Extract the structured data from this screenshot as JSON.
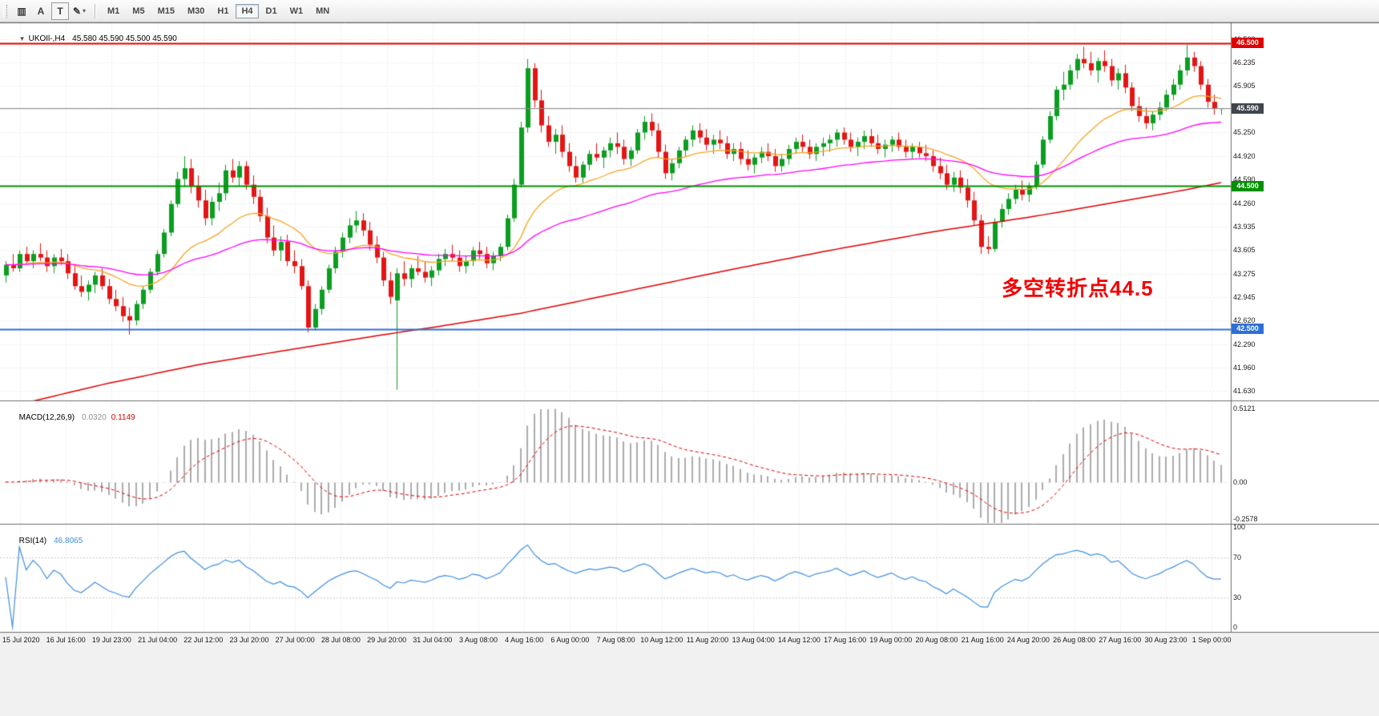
{
  "toolbar": {
    "icon_buttons": [
      {
        "name": "chart-window-button",
        "icon_name": "bars-icon",
        "glyph": "▥",
        "boxed": false,
        "dropdown": false
      },
      {
        "name": "text-label-button",
        "icon_name": "letter-a-icon",
        "glyph": "A",
        "boxed": false,
        "dropdown": false
      },
      {
        "name": "text-frame-button",
        "icon_name": "letter-t-icon",
        "glyph": "T",
        "boxed": true,
        "dropdown": false
      },
      {
        "name": "draw-tools-button",
        "icon_name": "pencil-icon",
        "glyph": "✎",
        "boxed": false,
        "dropdown": true
      }
    ],
    "timeframes": [
      "M1",
      "M5",
      "M15",
      "M30",
      "H1",
      "H4",
      "D1",
      "W1",
      "MN"
    ],
    "active_timeframe": "H4"
  },
  "price_panel": {
    "header": {
      "collapse_glyph": "▼",
      "title": "UKOIl-,H4",
      "ohlc": "45.580 45.590 45.500 45.590"
    },
    "scale_labels": [
      "46.560",
      "46.235",
      "45.905",
      "45.575",
      "45.250",
      "44.920",
      "44.590",
      "44.260",
      "43.935",
      "43.605",
      "43.275",
      "42.945",
      "42.620",
      "42.290",
      "41.960",
      "41.630"
    ],
    "hlines": [
      {
        "name": "resistance-line",
        "price": 46.5,
        "color": "#e00000",
        "width": 2,
        "label": "46.500",
        "label_bg": "#e00000"
      },
      {
        "name": "current-price-line",
        "price": 45.59,
        "color": "#8a8a8a",
        "width": 1,
        "label": "45.590",
        "label_bg": "#40464c"
      },
      {
        "name": "pivot-line",
        "price": 44.5,
        "color": "#009000",
        "width": 2,
        "label": "44.500",
        "label_bg": "#009000"
      },
      {
        "name": "support-line",
        "price": 42.5,
        "color": "#2e6fd6",
        "width": 2,
        "label": "42.500",
        "label_bg": "#2e6fd6"
      }
    ],
    "annotation": {
      "text": "多空转折点44.5",
      "color": "#f20000"
    }
  },
  "macd_panel": {
    "label": "MACD(12,26,9)",
    "main_value": "0.0320",
    "signal_value": "0.1149",
    "scale_labels": [
      "0.5121",
      "0.00",
      "-0.2578"
    ]
  },
  "rsi_panel": {
    "label": "RSI(14)",
    "value": "46.8065",
    "scale_labels": [
      "100",
      "70",
      "30",
      "0"
    ],
    "levels": [
      70,
      30
    ]
  },
  "time_axis": {
    "labels": [
      "15 Jul 2020",
      "16 Jul 16:00",
      "19 Jul 23:00",
      "21 Jul 04:00",
      "22 Jul 12:00",
      "23 Jul 20:00",
      "27 Jul 00:00",
      "28 Jul 08:00",
      "29 Jul 20:00",
      "31 Jul 04:00",
      "3 Aug 08:00",
      "4 Aug 16:00",
      "6 Aug 00:00",
      "7 Aug 08:00",
      "10 Aug 12:00",
      "11 Aug 20:00",
      "13 Aug 04:00",
      "14 Aug 12:00",
      "17 Aug 16:00",
      "19 Aug 00:00",
      "20 Aug 08:00",
      "21 Aug 16:00",
      "24 Aug 20:00",
      "26 Aug 08:00",
      "27 Aug 16:00",
      "30 Aug 23:00",
      "1 Sep 00:00"
    ]
  },
  "colors": {
    "bull": "#0b9e21",
    "bear": "#e41515",
    "histogram": "#ababab",
    "rsi_line": "#3f8fdf",
    "grid": "#e2e2e2"
  },
  "chart_data": {
    "type": "candlestick",
    "symbol": "UKOIl-",
    "timeframe": "H4",
    "last_ohlc": {
      "open": "45.580",
      "high": "45.590",
      "low": "45.500",
      "close": "45.590"
    },
    "price_axis": {
      "min": 41.63,
      "max": 46.56,
      "tick_step": 0.33
    },
    "hlines": [
      46.5,
      45.59,
      44.5,
      42.5
    ],
    "annotation": "多空转折点44.5",
    "indicators": [
      {
        "name": "MACD",
        "params": [
          12,
          26,
          9
        ],
        "current_main": 0.032,
        "current_signal": 0.1149,
        "scale": [
          0.5121,
          0.0,
          -0.2578
        ]
      },
      {
        "name": "RSI",
        "params": [
          14
        ],
        "current": 46.8065,
        "levels": [
          70,
          30
        ],
        "scale": [
          100,
          70,
          30,
          0
        ]
      }
    ],
    "overlays": [
      {
        "name": "ma-fast",
        "type": "ema",
        "period": 21,
        "color": "#f5a623"
      },
      {
        "name": "ma-mid",
        "type": "ema",
        "period": 55,
        "color": "#ff00ff"
      },
      {
        "name": "ma-slow",
        "type": "waypoints",
        "color": "#e00000",
        "points": [
          [
            0,
            41.4
          ],
          [
            14,
            41.72
          ],
          [
            28,
            42.0
          ],
          [
            42,
            42.22
          ],
          [
            55,
            42.42
          ],
          [
            62,
            42.52
          ],
          [
            75,
            42.72
          ],
          [
            90,
            43.02
          ],
          [
            105,
            43.32
          ],
          [
            120,
            43.6
          ],
          [
            135,
            43.86
          ],
          [
            150,
            44.08
          ],
          [
            162,
            44.28
          ],
          [
            172,
            44.45
          ],
          [
            177,
            44.55
          ]
        ]
      }
    ],
    "candles": [
      [
        43.25,
        43.45,
        43.15,
        43.4
      ],
      [
        43.4,
        43.55,
        43.3,
        43.35
      ],
      [
        43.35,
        43.6,
        43.3,
        43.55
      ],
      [
        43.55,
        43.65,
        43.4,
        43.45
      ],
      [
        43.45,
        43.6,
        43.35,
        43.55
      ],
      [
        43.55,
        43.7,
        43.45,
        43.5
      ],
      [
        43.5,
        43.6,
        43.3,
        43.38
      ],
      [
        43.38,
        43.55,
        43.28,
        43.5
      ],
      [
        43.5,
        43.62,
        43.4,
        43.45
      ],
      [
        43.45,
        43.55,
        43.2,
        43.28
      ],
      [
        43.28,
        43.4,
        43.05,
        43.1
      ],
      [
        43.1,
        43.25,
        42.95,
        43.02
      ],
      [
        43.02,
        43.18,
        42.9,
        43.12
      ],
      [
        43.12,
        43.3,
        43.0,
        43.25
      ],
      [
        43.25,
        43.35,
        43.05,
        43.1
      ],
      [
        43.1,
        43.2,
        42.85,
        42.92
      ],
      [
        42.92,
        43.05,
        42.75,
        42.82
      ],
      [
        42.82,
        42.95,
        42.6,
        42.68
      ],
      [
        42.68,
        42.8,
        42.42,
        42.62
      ],
      [
        42.62,
        42.9,
        42.55,
        42.85
      ],
      [
        42.85,
        43.1,
        42.78,
        43.05
      ],
      [
        43.05,
        43.35,
        43.0,
        43.3
      ],
      [
        43.3,
        43.6,
        43.25,
        43.55
      ],
      [
        43.55,
        43.9,
        43.5,
        43.85
      ],
      [
        43.85,
        44.3,
        43.8,
        44.25
      ],
      [
        44.25,
        44.7,
        44.2,
        44.6
      ],
      [
        44.6,
        44.92,
        44.5,
        44.75
      ],
      [
        44.75,
        44.88,
        44.4,
        44.5
      ],
      [
        44.5,
        44.65,
        44.2,
        44.3
      ],
      [
        44.3,
        44.45,
        43.95,
        44.05
      ],
      [
        44.05,
        44.35,
        43.95,
        44.28
      ],
      [
        44.28,
        44.55,
        44.15,
        44.4
      ],
      [
        44.4,
        44.8,
        44.3,
        44.72
      ],
      [
        44.72,
        44.88,
        44.55,
        44.62
      ],
      [
        44.62,
        44.85,
        44.5,
        44.78
      ],
      [
        44.78,
        44.85,
        44.45,
        44.52
      ],
      [
        44.52,
        44.65,
        44.25,
        44.35
      ],
      [
        44.35,
        44.45,
        44.0,
        44.08
      ],
      [
        44.08,
        44.2,
        43.7,
        43.78
      ],
      [
        43.78,
        43.95,
        43.52,
        43.6
      ],
      [
        43.6,
        43.8,
        43.45,
        43.72
      ],
      [
        43.72,
        43.82,
        43.38,
        43.45
      ],
      [
        43.45,
        43.6,
        43.28,
        43.38
      ],
      [
        43.38,
        43.48,
        43.05,
        43.1
      ],
      [
        43.1,
        43.18,
        42.45,
        42.52
      ],
      [
        42.52,
        42.85,
        42.48,
        42.78
      ],
      [
        42.78,
        43.1,
        42.7,
        43.05
      ],
      [
        43.05,
        43.4,
        43.0,
        43.35
      ],
      [
        43.35,
        43.65,
        43.28,
        43.58
      ],
      [
        43.58,
        43.85,
        43.5,
        43.78
      ],
      [
        43.78,
        44.05,
        43.7,
        43.95
      ],
      [
        43.95,
        44.15,
        43.85,
        44.02
      ],
      [
        44.02,
        44.12,
        43.8,
        43.88
      ],
      [
        43.88,
        44.0,
        43.6,
        43.68
      ],
      [
        43.68,
        43.8,
        43.42,
        43.5
      ],
      [
        43.5,
        43.58,
        43.1,
        43.18
      ],
      [
        43.18,
        43.3,
        42.85,
        42.95
      ],
      [
        42.9,
        43.35,
        41.65,
        43.28
      ],
      [
        43.28,
        43.45,
        43.1,
        43.2
      ],
      [
        43.2,
        43.4,
        43.08,
        43.35
      ],
      [
        43.35,
        43.52,
        43.25,
        43.3
      ],
      [
        43.3,
        43.45,
        43.15,
        43.22
      ],
      [
        43.22,
        43.38,
        43.1,
        43.32
      ],
      [
        43.32,
        43.55,
        43.25,
        43.48
      ],
      [
        43.48,
        43.62,
        43.38,
        43.55
      ],
      [
        43.55,
        43.68,
        43.45,
        43.5
      ],
      [
        43.5,
        43.6,
        43.3,
        43.38
      ],
      [
        43.38,
        43.52,
        43.28,
        43.45
      ],
      [
        43.45,
        43.65,
        43.38,
        43.6
      ],
      [
        43.6,
        43.72,
        43.48,
        43.55
      ],
      [
        43.55,
        43.65,
        43.35,
        43.42
      ],
      [
        43.42,
        43.58,
        43.32,
        43.52
      ],
      [
        43.52,
        43.7,
        43.45,
        43.65
      ],
      [
        43.65,
        44.1,
        43.6,
        44.05
      ],
      [
        44.05,
        44.6,
        44.0,
        44.52
      ],
      [
        44.52,
        45.4,
        44.48,
        45.32
      ],
      [
        45.32,
        46.28,
        45.25,
        46.15
      ],
      [
        46.15,
        46.22,
        45.6,
        45.7
      ],
      [
        45.7,
        45.85,
        45.25,
        45.35
      ],
      [
        45.35,
        45.48,
        45.05,
        45.12
      ],
      [
        45.12,
        45.3,
        44.95,
        45.22
      ],
      [
        45.22,
        45.35,
        44.9,
        44.98
      ],
      [
        44.98,
        45.1,
        44.7,
        44.78
      ],
      [
        44.78,
        44.92,
        44.55,
        44.62
      ],
      [
        44.62,
        44.85,
        44.55,
        44.8
      ],
      [
        44.8,
        45.0,
        44.72,
        44.95
      ],
      [
        44.95,
        45.1,
        44.85,
        44.9
      ],
      [
        44.9,
        45.05,
        44.75,
        45.0
      ],
      [
        45.0,
        45.18,
        44.9,
        45.1
      ],
      [
        45.1,
        45.25,
        44.95,
        45.05
      ],
      [
        45.05,
        45.15,
        44.8,
        44.88
      ],
      [
        44.88,
        45.05,
        44.78,
        45.0
      ],
      [
        45.0,
        45.3,
        44.95,
        45.25
      ],
      [
        45.25,
        45.48,
        45.15,
        45.4
      ],
      [
        45.4,
        45.52,
        45.2,
        45.28
      ],
      [
        45.28,
        45.38,
        44.9,
        44.98
      ],
      [
        44.98,
        45.08,
        44.6,
        44.68
      ],
      [
        44.68,
        44.88,
        44.58,
        44.82
      ],
      [
        44.82,
        45.05,
        44.75,
        45.0
      ],
      [
        45.0,
        45.2,
        44.92,
        45.15
      ],
      [
        45.15,
        45.35,
        45.05,
        45.28
      ],
      [
        45.28,
        45.38,
        45.1,
        45.18
      ],
      [
        45.18,
        45.3,
        45.0,
        45.08
      ],
      [
        45.08,
        45.22,
        44.95,
        45.15
      ],
      [
        45.15,
        45.28,
        45.02,
        45.1
      ],
      [
        45.1,
        45.2,
        44.88,
        44.95
      ],
      [
        44.95,
        45.1,
        44.85,
        45.02
      ],
      [
        45.02,
        45.12,
        44.8,
        44.88
      ],
      [
        44.88,
        45.0,
        44.72,
        44.8
      ],
      [
        44.8,
        44.95,
        44.68,
        44.9
      ],
      [
        44.9,
        45.05,
        44.82,
        44.98
      ],
      [
        44.98,
        45.1,
        44.85,
        44.92
      ],
      [
        44.92,
        45.02,
        44.7,
        44.78
      ],
      [
        44.78,
        44.95,
        44.7,
        44.88
      ],
      [
        44.88,
        45.08,
        44.8,
        45.02
      ],
      [
        45.02,
        45.18,
        44.95,
        45.12
      ],
      [
        45.12,
        45.22,
        44.98,
        45.05
      ],
      [
        45.05,
        45.15,
        44.88,
        44.95
      ],
      [
        44.95,
        45.1,
        44.85,
        45.05
      ],
      [
        45.05,
        45.18,
        44.92,
        45.1
      ],
      [
        45.1,
        45.22,
        44.98,
        45.15
      ],
      [
        45.15,
        45.3,
        45.05,
        45.25
      ],
      [
        45.25,
        45.32,
        45.08,
        45.15
      ],
      [
        45.15,
        45.25,
        44.98,
        45.05
      ],
      [
        45.05,
        45.18,
        44.92,
        45.12
      ],
      [
        45.12,
        45.28,
        45.02,
        45.2
      ],
      [
        45.2,
        45.3,
        45.05,
        45.1
      ],
      [
        45.1,
        45.22,
        44.95,
        45.02
      ],
      [
        45.02,
        45.15,
        44.9,
        45.08
      ],
      [
        45.08,
        45.2,
        44.98,
        45.15
      ],
      [
        45.15,
        45.25,
        45.0,
        45.05
      ],
      [
        45.05,
        45.15,
        44.9,
        44.98
      ],
      [
        44.98,
        45.1,
        44.88,
        45.05
      ],
      [
        45.05,
        45.12,
        44.9,
        44.96
      ],
      [
        44.96,
        45.08,
        44.85,
        44.92
      ],
      [
        44.92,
        45.0,
        44.7,
        44.78
      ],
      [
        44.78,
        44.9,
        44.6,
        44.68
      ],
      [
        44.68,
        44.8,
        44.45,
        44.52
      ],
      [
        44.52,
        44.7,
        44.42,
        44.62
      ],
      [
        44.62,
        44.72,
        44.4,
        44.48
      ],
      [
        44.48,
        44.6,
        44.2,
        44.3
      ],
      [
        44.3,
        44.42,
        43.95,
        44.02
      ],
      [
        44.02,
        44.1,
        43.55,
        43.65
      ],
      [
        43.65,
        43.8,
        43.55,
        43.62
      ],
      [
        43.62,
        44.05,
        43.58,
        44.0
      ],
      [
        44.0,
        44.25,
        43.92,
        44.18
      ],
      [
        44.18,
        44.4,
        44.1,
        44.32
      ],
      [
        44.32,
        44.52,
        44.25,
        44.45
      ],
      [
        44.45,
        44.58,
        44.3,
        44.38
      ],
      [
        44.38,
        44.55,
        44.28,
        44.5
      ],
      [
        44.5,
        44.85,
        44.45,
        44.8
      ],
      [
        44.8,
        45.2,
        44.75,
        45.15
      ],
      [
        45.15,
        45.55,
        45.1,
        45.48
      ],
      [
        45.48,
        45.9,
        45.42,
        45.85
      ],
      [
        45.85,
        46.1,
        45.7,
        45.92
      ],
      [
        45.92,
        46.2,
        45.85,
        46.12
      ],
      [
        46.12,
        46.35,
        46.0,
        46.28
      ],
      [
        46.28,
        46.45,
        46.15,
        46.22
      ],
      [
        46.22,
        46.38,
        46.05,
        46.12
      ],
      [
        46.12,
        46.3,
        45.95,
        46.25
      ],
      [
        46.25,
        46.4,
        46.1,
        46.18
      ],
      [
        46.18,
        46.28,
        45.9,
        45.98
      ],
      [
        45.98,
        46.15,
        45.85,
        46.08
      ],
      [
        46.08,
        46.2,
        45.8,
        45.88
      ],
      [
        45.88,
        45.95,
        45.55,
        45.62
      ],
      [
        45.62,
        45.75,
        45.4,
        45.48
      ],
      [
        45.48,
        45.6,
        45.3,
        45.38
      ],
      [
        45.38,
        45.55,
        45.28,
        45.5
      ],
      [
        45.5,
        45.68,
        45.42,
        45.6
      ],
      [
        45.6,
        45.85,
        45.55,
        45.78
      ],
      [
        45.78,
        46.0,
        45.7,
        45.92
      ],
      [
        45.92,
        46.2,
        45.85,
        46.12
      ],
      [
        46.12,
        46.48,
        46.05,
        46.3
      ],
      [
        46.3,
        46.38,
        46.1,
        46.18
      ],
      [
        46.18,
        46.25,
        45.85,
        45.92
      ],
      [
        45.92,
        46.0,
        45.6,
        45.68
      ],
      [
        45.68,
        45.78,
        45.5,
        45.58
      ],
      [
        45.58,
        45.59,
        45.5,
        45.59
      ]
    ]
  }
}
